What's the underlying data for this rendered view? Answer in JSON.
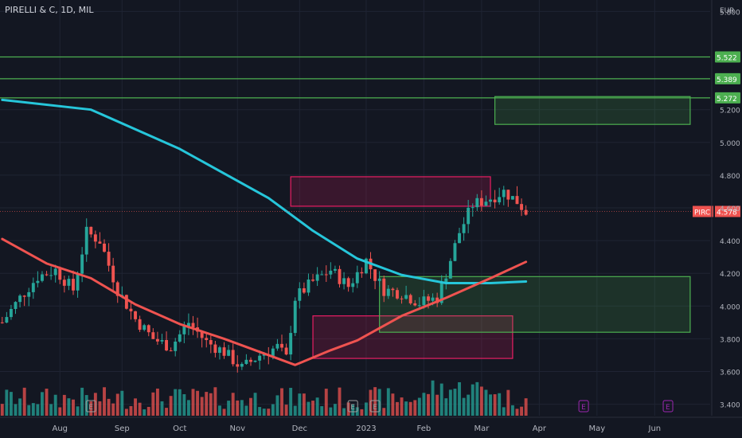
{
  "header": {
    "symbol_title": "PIRELLI & C, 1D, MIL",
    "currency": "EUR"
  },
  "chart_data": {
    "type": "candlestick",
    "title": "PIRELLI & C, 1D, MIL",
    "ylim": [
      3.33,
      5.87
    ],
    "y_ticks": [
      "5.800",
      "5.200",
      "5.000",
      "4.800",
      "4.600",
      "4.400",
      "4.200",
      "4.000",
      "3.800",
      "3.600",
      "3.400"
    ],
    "x_tick_labels": [
      "Aug",
      "Sep",
      "Oct",
      "Nov",
      "Dec",
      "2023",
      "Feb",
      "Mar",
      "Apr",
      "May",
      "Jun"
    ],
    "bar_count": 160,
    "resistance_lines": [
      {
        "value": 5.522,
        "label": "5.522"
      },
      {
        "value": 5.389,
        "label": "5.389"
      },
      {
        "value": 5.272,
        "label": "5.272"
      }
    ],
    "last_price": {
      "ticker": "PIRC",
      "value": 4.578,
      "label": "4.578"
    },
    "candles_close_anchors": [
      [
        0,
        3.9
      ],
      [
        4,
        4.05
      ],
      [
        8,
        4.18
      ],
      [
        12,
        4.22
      ],
      [
        16,
        4.1
      ],
      [
        19,
        4.45
      ],
      [
        22,
        4.4
      ],
      [
        26,
        4.1
      ],
      [
        30,
        3.92
      ],
      [
        34,
        3.8
      ],
      [
        38,
        3.75
      ],
      [
        42,
        3.9
      ],
      [
        46,
        3.78
      ],
      [
        50,
        3.72
      ],
      [
        54,
        3.62
      ],
      [
        58,
        3.7
      ],
      [
        62,
        3.75
      ],
      [
        64,
        3.68
      ],
      [
        66,
        4.05
      ],
      [
        70,
        4.15
      ],
      [
        74,
        4.22
      ],
      [
        78,
        4.12
      ],
      [
        82,
        4.28
      ],
      [
        84,
        4.18
      ],
      [
        86,
        4.1
      ],
      [
        90,
        4.08
      ],
      [
        94,
        4.02
      ],
      [
        98,
        4.05
      ],
      [
        100,
        4.2
      ],
      [
        103,
        4.45
      ],
      [
        106,
        4.62
      ],
      [
        110,
        4.66
      ],
      [
        113,
        4.7
      ],
      [
        116,
        4.64
      ],
      [
        118,
        4.578
      ]
    ],
    "sma_long": {
      "color": "#26c6da",
      "points": [
        [
          0,
          5.26
        ],
        [
          20,
          5.2
        ],
        [
          40,
          4.96
        ],
        [
          60,
          4.66
        ],
        [
          70,
          4.46
        ],
        [
          80,
          4.29
        ],
        [
          90,
          4.19
        ],
        [
          100,
          4.14
        ],
        [
          110,
          4.14
        ],
        [
          118,
          4.15
        ]
      ]
    },
    "sma_short": {
      "color": "#ef5350",
      "points": [
        [
          0,
          4.41
        ],
        [
          10,
          4.26
        ],
        [
          20,
          4.17
        ],
        [
          30,
          4.01
        ],
        [
          40,
          3.89
        ],
        [
          50,
          3.8
        ],
        [
          60,
          3.7
        ],
        [
          66,
          3.64
        ],
        [
          74,
          3.73
        ],
        [
          80,
          3.79
        ],
        [
          90,
          3.94
        ],
        [
          100,
          4.05
        ],
        [
          110,
          4.17
        ],
        [
          118,
          4.27
        ]
      ]
    },
    "zones": [
      {
        "kind": "supply",
        "x_bars": [
          65,
          110
        ],
        "y": [
          4.61,
          4.79
        ],
        "color": "#e91e63"
      },
      {
        "kind": "supply-upper",
        "x_bars": [
          111,
          155
        ],
        "y": [
          5.11,
          5.28
        ],
        "color": "#4caf50"
      },
      {
        "kind": "demand",
        "x_bars": [
          70,
          115
        ],
        "y": [
          3.68,
          3.94
        ],
        "color": "#e91e63"
      },
      {
        "kind": "demand",
        "x_bars": [
          85,
          155
        ],
        "y": [
          3.84,
          4.18
        ],
        "color": "#4caf50"
      }
    ],
    "event_markers": [
      "E",
      "E",
      "E",
      "E",
      "E"
    ],
    "grid": true
  }
}
